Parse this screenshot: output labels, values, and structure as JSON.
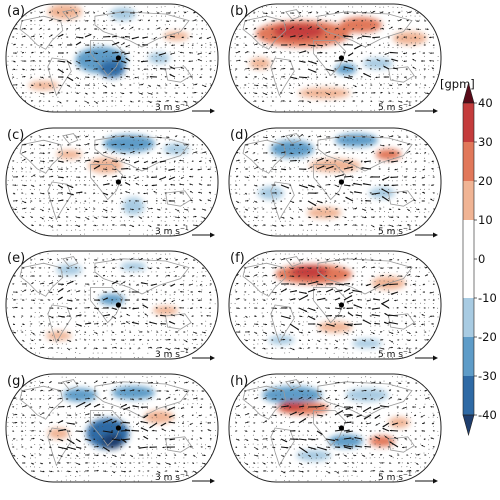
{
  "panels": [
    {
      "label": "(a)",
      "scale": "3 m s",
      "anomaly": "weak-negative-indian"
    },
    {
      "label": "(b)",
      "scale": "5 m s",
      "anomaly": "strong-positive-north"
    },
    {
      "label": "(c)",
      "scale": "3 m s",
      "anomaly": "weak-mixed"
    },
    {
      "label": "(d)",
      "scale": "5 m s",
      "anomaly": "moderate-mixed"
    },
    {
      "label": "(e)",
      "scale": "3 m s",
      "anomaly": "weak-negative"
    },
    {
      "label": "(f)",
      "scale": "5 m s",
      "anomaly": "positive-north"
    },
    {
      "label": "(g)",
      "scale": "3 m s",
      "anomaly": "strong-negative-indian"
    },
    {
      "label": "(h)",
      "scale": "5 m s",
      "anomaly": "strong-dipole"
    }
  ],
  "scale_exponent": "−1",
  "colorbar": {
    "unit": "[gpm]",
    "ticks": [
      "40",
      "30",
      "20",
      "10",
      "0",
      "-10",
      "-20",
      "-30",
      "-40"
    ],
    "min": -40,
    "max": 40,
    "colors": {
      "neg40": "#1f3e6e",
      "neg30": "#2f6aa5",
      "neg20": "#5e9cc8",
      "neg10": "#a8cbe2",
      "neg5": "#d8e8f2",
      "zero": "#ffffff",
      "pos5": "#f6dbc9",
      "pos10": "#f0b494",
      "pos20": "#e1785a",
      "pos30": "#c43c3c",
      "pos40": "#7a0c1f"
    }
  },
  "colors": {
    "coast": "#9a9a9a",
    "arrow": "#111111",
    "dot": "#555555",
    "frame": "#222222"
  }
}
